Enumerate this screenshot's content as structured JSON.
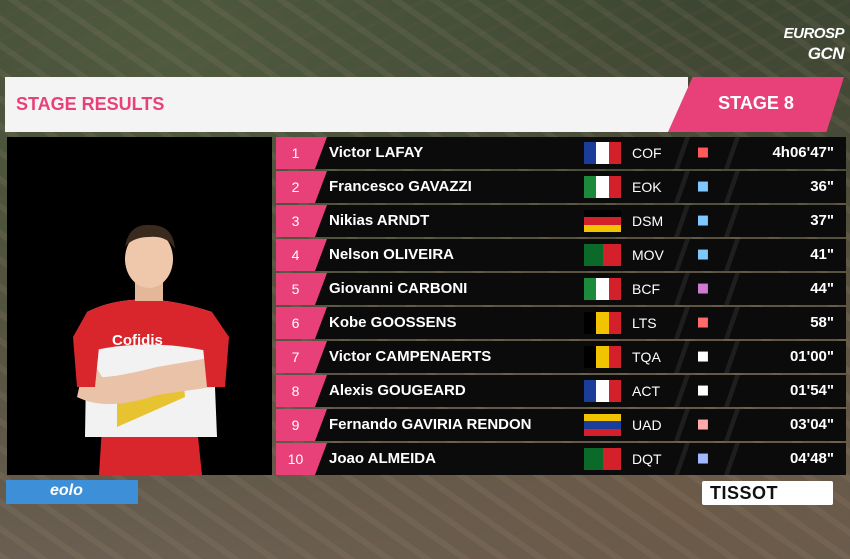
{
  "broadcast": {
    "logo_line1": "EUROSP",
    "logo_line2": "GCN"
  },
  "header": {
    "title": "STAGE RESULTS",
    "stage": "STAGE 8"
  },
  "colors": {
    "accent": "#e8417a",
    "sponsor_blue": "#3d8fd8"
  },
  "results": [
    {
      "pos": "1",
      "name": "Victor LAFAY",
      "team": "COF",
      "time": "4h06'47\"",
      "jersey_icon": "jersey-icon"
    },
    {
      "pos": "2",
      "name": "Francesco GAVAZZI",
      "team": "EOK",
      "time": "36\"",
      "jersey_icon": "jersey-icon"
    },
    {
      "pos": "3",
      "name": "Nikias ARNDT",
      "team": "DSM",
      "time": "37\"",
      "jersey_icon": "jersey-icon"
    },
    {
      "pos": "4",
      "name": "Nelson OLIVEIRA",
      "team": "MOV",
      "time": "41\"",
      "jersey_icon": "jersey-icon"
    },
    {
      "pos": "5",
      "name": "Giovanni CARBONI",
      "team": "BCF",
      "time": "44\"",
      "jersey_icon": "jersey-icon"
    },
    {
      "pos": "6",
      "name": "Kobe GOOSSENS",
      "team": "LTS",
      "time": "58\"",
      "jersey_icon": "jersey-icon"
    },
    {
      "pos": "7",
      "name": "Victor CAMPENAERTS",
      "team": "TQA",
      "time": "01'00\"",
      "jersey_icon": "jersey-icon"
    },
    {
      "pos": "8",
      "name": "Alexis GOUGEARD",
      "team": "ACT",
      "time": "01'54\"",
      "jersey_icon": "jersey-icon"
    },
    {
      "pos": "9",
      "name": "Fernando GAVIRIA RENDON",
      "team": "UAD",
      "time": "03'04\"",
      "jersey_icon": "jersey-icon"
    },
    {
      "pos": "10",
      "name": "Joao ALMEIDA",
      "team": "DQT",
      "time": "04'48\"",
      "jersey_icon": "jersey-icon"
    }
  ],
  "sponsors": {
    "left": "eolo",
    "right": "TISSOT"
  }
}
